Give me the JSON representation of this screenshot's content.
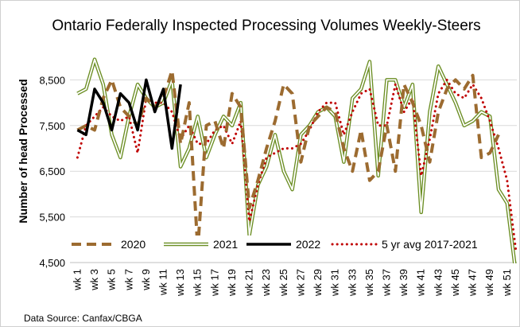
{
  "chart_data": {
    "type": "line",
    "title": "Ontario Federally Inspected Processing Volumes Weekly-Steers",
    "y_label": "Number of head Processed",
    "source": "Data Source: Canfax/CBGA",
    "categories": [
      "wk 1",
      null,
      "wk 3",
      null,
      "wk 5",
      null,
      "wk 7",
      null,
      "wk 9",
      null,
      "wk 11",
      null,
      "wk 13",
      null,
      "wk 15",
      null,
      "wk 17",
      null,
      "wk 19",
      null,
      "wk 21",
      null,
      "wk 23",
      null,
      "wk 25",
      null,
      "wk 27",
      null,
      "wk 29",
      null,
      "wk 31",
      null,
      "wk 33",
      null,
      "wk 35",
      null,
      "wk 37",
      null,
      "wk 39",
      null,
      "wk 41",
      null,
      "wk 43",
      null,
      "wk 45",
      null,
      "wk 47",
      null,
      "wk 49",
      null,
      "wk 51",
      null
    ],
    "ylim": [
      4500,
      9500
    ],
    "yticks": [
      {
        "value": 4500,
        "label": "4,500"
      },
      {
        "value": 5500,
        "label": "5,500"
      },
      {
        "value": 6500,
        "label": "6,500"
      },
      {
        "value": 7500,
        "label": "7,500"
      },
      {
        "value": 8500,
        "label": "8,500"
      }
    ],
    "grid": true,
    "legend": "lower center",
    "series": [
      {
        "name": "2020",
        "color": "#9c6b30",
        "style": "dashed",
        "values": [
          7400,
          7500,
          7400,
          8100,
          8500,
          7900,
          7700,
          7500,
          8100,
          7900,
          8100,
          8700,
          7100,
          8000,
          4800,
          7500,
          7600,
          7000,
          8200,
          7900,
          5700,
          6300,
          7000,
          7600,
          8400,
          8200,
          6700,
          7500,
          7700,
          7900,
          7800,
          7000,
          6500,
          7400,
          6300,
          6500,
          7500,
          6500,
          8400,
          8000,
          7500,
          6700,
          7800,
          8300,
          8500,
          8300,
          8600,
          6800,
          6900,
          7300,
          null,
          null
        ]
      },
      {
        "name": "2021",
        "color": "#6b8e23",
        "style": "double",
        "values": [
          8200,
          8300,
          8950,
          8400,
          7300,
          6800,
          7700,
          8400,
          8100,
          7900,
          8000,
          8500,
          6600,
          7000,
          7700,
          6800,
          7300,
          7700,
          7500,
          8000,
          5100,
          6200,
          6600,
          7300,
          6500,
          6100,
          7300,
          7500,
          7800,
          7900,
          7700,
          6700,
          8100,
          8300,
          8900,
          6400,
          8500,
          8500,
          7900,
          8400,
          5600,
          7800,
          8800,
          8400,
          8000,
          7500,
          7600,
          7800,
          7700,
          6100,
          5800,
          4300
        ]
      },
      {
        "name": "2022",
        "color": "#000000",
        "style": "solid",
        "values": [
          7400,
          7300,
          8300,
          8000,
          7400,
          8200,
          8000,
          7400,
          8500,
          7800,
          8300,
          7000,
          8400,
          null,
          null,
          null,
          null,
          null,
          null,
          null,
          null,
          null,
          null,
          null,
          null,
          null,
          null,
          null,
          null,
          null,
          null,
          null,
          null,
          null,
          null,
          null,
          null,
          null,
          null,
          null,
          null,
          null,
          null,
          null,
          null,
          null,
          null,
          null,
          null,
          null,
          null,
          null
        ]
      },
      {
        "name": "5 yr avg 2017-2021",
        "color": "#c00000",
        "style": "dotted",
        "values": [
          6800,
          7500,
          7700,
          7900,
          7700,
          7600,
          7700,
          6900,
          8100,
          8000,
          8000,
          7800,
          7200,
          7500,
          7100,
          7100,
          7400,
          7500,
          7100,
          7600,
          5400,
          6200,
          6800,
          6900,
          7000,
          7000,
          7100,
          7400,
          7800,
          8000,
          8000,
          7300,
          7800,
          8200,
          8300,
          7500,
          7500,
          8400,
          7800,
          8100,
          6400,
          7200,
          8200,
          8500,
          8200,
          8100,
          8400,
          8100,
          7600,
          7000,
          6300,
          4800
        ]
      }
    ]
  }
}
